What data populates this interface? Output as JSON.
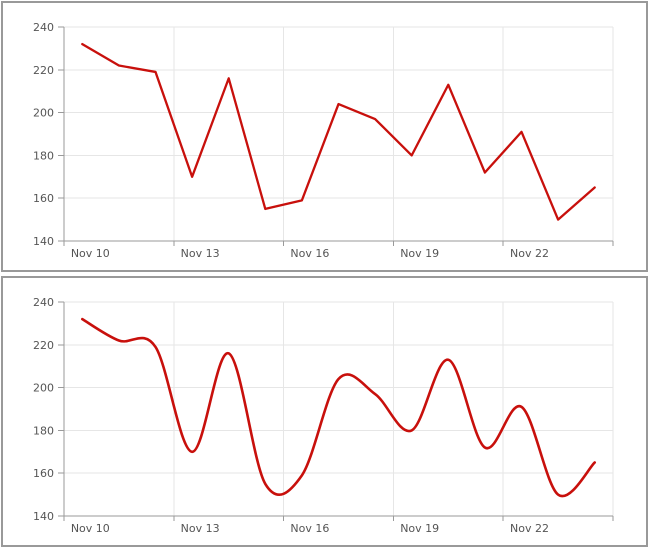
{
  "style": {
    "line_color": "#c8100c",
    "grid_color": "#e6e6e6",
    "axis_color": "#9a9a9a",
    "label_color": "#555555",
    "panel_border_color": "#999999",
    "background": "#ffffff"
  },
  "chart_data": [
    {
      "type": "line",
      "line_shape": "straight",
      "title": "",
      "xlabel": "",
      "ylabel": "",
      "x": [
        "Nov 10",
        "Nov 11",
        "Nov 12",
        "Nov 13",
        "Nov 14",
        "Nov 15",
        "Nov 16",
        "Nov 17",
        "Nov 18",
        "Nov 19",
        "Nov 20",
        "Nov 21",
        "Nov 22",
        "Nov 23",
        "Nov 24"
      ],
      "values": [
        232,
        222,
        219,
        170,
        216,
        155,
        159,
        204,
        197,
        180,
        213,
        172,
        191,
        150,
        165
      ],
      "ylim": [
        140,
        240
      ],
      "ytick_step": 20,
      "xtick_every": 3,
      "xtick_labels": [
        "Nov 10",
        "Nov 13",
        "Nov 16",
        "Nov 19",
        "Nov 22"
      ],
      "grid": true,
      "legend": false
    },
    {
      "type": "line",
      "line_shape": "smooth",
      "title": "",
      "xlabel": "",
      "ylabel": "",
      "x": [
        "Nov 10",
        "Nov 11",
        "Nov 12",
        "Nov 13",
        "Nov 14",
        "Nov 15",
        "Nov 16",
        "Nov 17",
        "Nov 18",
        "Nov 19",
        "Nov 20",
        "Nov 21",
        "Nov 22",
        "Nov 23",
        "Nov 24"
      ],
      "values": [
        232,
        222,
        219,
        170,
        216,
        155,
        159,
        204,
        197,
        180,
        213,
        172,
        191,
        150,
        165
      ],
      "ylim": [
        140,
        240
      ],
      "ytick_step": 20,
      "xtick_every": 3,
      "xtick_labels": [
        "Nov 10",
        "Nov 13",
        "Nov 16",
        "Nov 19",
        "Nov 22"
      ],
      "grid": true,
      "legend": false
    }
  ]
}
